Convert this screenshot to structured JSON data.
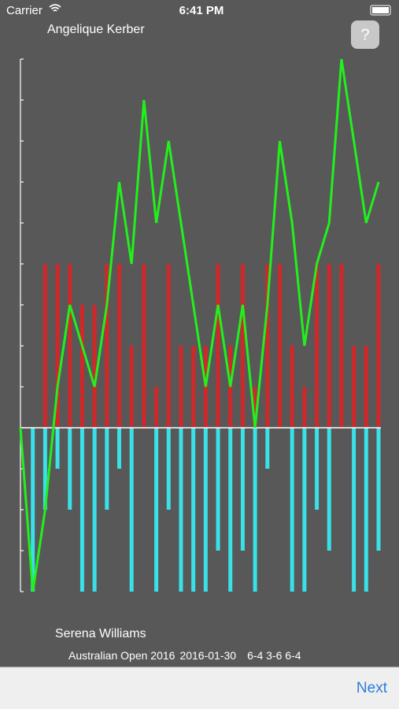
{
  "status_bar": {
    "carrier": "Carrier",
    "time": "6:41 PM"
  },
  "players": {
    "top": "Angelique Kerber",
    "bottom": "Serena Williams"
  },
  "match": {
    "event": "Australian Open 2016",
    "date": "2016-01-30",
    "score": "6-4 3-6 6-4"
  },
  "help_button": "?",
  "next_button": "Next",
  "chart_data": {
    "type": "bar",
    "categories": [
      null,
      null,
      null,
      null,
      null,
      null,
      null,
      null,
      null,
      null,
      null,
      null,
      null,
      null,
      null,
      null,
      null,
      null,
      null,
      null,
      null,
      null,
      null,
      null,
      null,
      null,
      null,
      null,
      null,
      null
    ],
    "series": [
      {
        "type": "bar",
        "color": "#d0282a",
        "values": [
          null,
          null,
          4,
          4,
          4,
          3,
          3,
          4,
          4,
          2,
          4,
          1,
          4,
          2,
          2,
          2,
          4,
          2,
          4,
          1,
          4,
          4,
          2,
          1,
          4,
          4,
          4,
          2,
          2,
          4
        ]
      },
      {
        "type": "bar",
        "color": "#39e1e8",
        "values": [
          null,
          -4,
          -2,
          -1,
          -2,
          -4,
          -4,
          -2,
          -1,
          -4,
          null,
          -4,
          -2,
          -4,
          -4,
          -4,
          -3,
          -4,
          -3,
          -4,
          -1,
          null,
          -4,
          -4,
          -2,
          -3,
          null,
          -4,
          -4,
          -3
        ]
      },
      {
        "type": "line",
        "color": "#22f01c",
        "values": [
          0,
          -4,
          -2,
          1,
          3,
          2,
          1,
          3,
          6,
          4,
          8,
          5,
          7,
          5,
          3,
          1,
          3,
          1,
          3,
          0,
          3,
          7,
          5,
          2,
          4,
          5,
          9,
          7,
          5,
          6
        ]
      }
    ],
    "ylim": [
      -4,
      9
    ],
    "yticks": [
      -4,
      -3,
      -2,
      -1,
      0,
      1,
      2,
      3,
      4,
      5,
      6,
      7,
      8,
      9
    ]
  }
}
